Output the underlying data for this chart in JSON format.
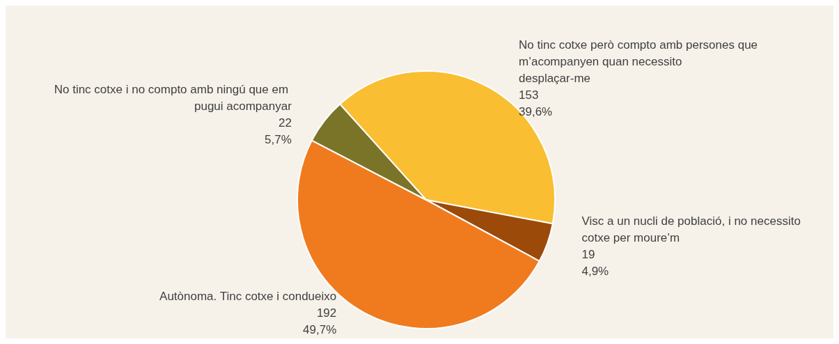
{
  "chart_data": {
    "type": "pie",
    "categories": [
      "No tinc cotxe però compto amb persones que m’acompanyen quan necessito desplaçar-me",
      "Visc a un nucli de població, i no necessito cotxe per moure’m",
      "Autònoma. Tinc cotxe i condueixo",
      "No tinc cotxe i no compto amb ningú que em pugui acompanyar"
    ],
    "values": [
      153,
      19,
      192,
      22
    ],
    "value_labels": [
      "153\n39,6%",
      "19\n4,9%",
      "192\n49,7%",
      "22\n5,7%"
    ],
    "colors": [
      "#f9be32",
      "#9c4a0a",
      "#f07b1e",
      "#7a7428"
    ]
  }
}
